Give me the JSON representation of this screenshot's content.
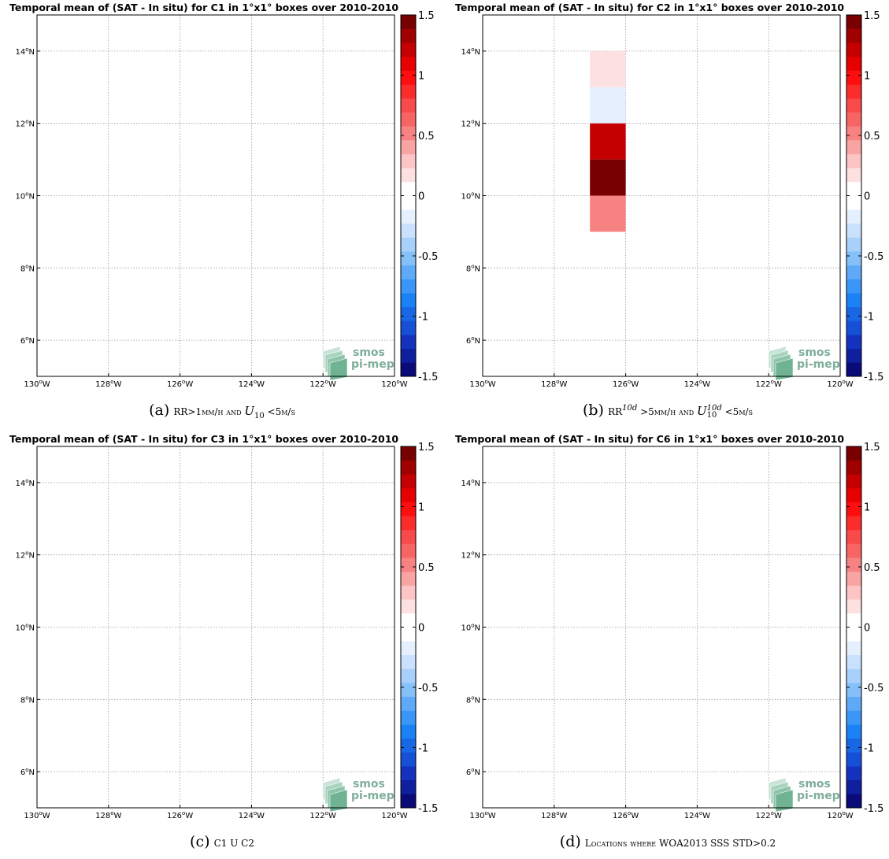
{
  "chart_data": [
    {
      "type": "heatmap",
      "panel_letter": "(a)",
      "title": "Temporal mean of (SAT - In situ) for C1 in 1°x1° boxes over 2010-2010",
      "xlim": [
        -130,
        -120
      ],
      "ylim": [
        5,
        15
      ],
      "x_ticks": [
        "130°W",
        "128°W",
        "126°W",
        "124°W",
        "122°W",
        "120°W"
      ],
      "y_ticks": [
        "6°N",
        "8°N",
        "10°N",
        "12°N",
        "14°N"
      ],
      "grid": true,
      "colorbar": {
        "range": [
          -1.5,
          1.5
        ],
        "ticks": [
          "1.5",
          "1",
          "0.5",
          "0",
          "-0.5",
          "-1",
          "-1.5"
        ]
      },
      "cells": [],
      "caption": "RR>1mm/h and U10 <5m/s"
    },
    {
      "type": "heatmap",
      "panel_letter": "(b)",
      "title": "Temporal mean of (SAT - In situ) for C2 in 1°x1° boxes over 2010-2010",
      "xlim": [
        -130,
        -120
      ],
      "ylim": [
        5,
        15
      ],
      "x_ticks": [
        "130°W",
        "128°W",
        "126°W",
        "124°W",
        "122°W",
        "120°W"
      ],
      "y_ticks": [
        "6°N",
        "8°N",
        "10°N",
        "12°N",
        "14°N"
      ],
      "grid": true,
      "colorbar": {
        "range": [
          -1.5,
          1.5
        ],
        "ticks": [
          "1.5",
          "1",
          "0.5",
          "0",
          "-0.5",
          "-1",
          "-1.5"
        ]
      },
      "cells": [
        {
          "lon": [
            -127,
            -126
          ],
          "lat": [
            13,
            14
          ],
          "value": 0.2
        },
        {
          "lon": [
            -127,
            -126
          ],
          "lat": [
            12,
            13
          ],
          "value": -0.2
        },
        {
          "lon": [
            -127,
            -126
          ],
          "lat": [
            11,
            12
          ],
          "value": 1.2
        },
        {
          "lon": [
            -127,
            -126
          ],
          "lat": [
            10,
            11
          ],
          "value": 1.5
        },
        {
          "lon": [
            -127,
            -126
          ],
          "lat": [
            9,
            10
          ],
          "value": 0.55
        }
      ],
      "caption": "RR10d >5mm/h and U10d10 <5m/s"
    },
    {
      "type": "heatmap",
      "panel_letter": "(c)",
      "title": "Temporal mean of (SAT - In situ) for C3 in 1°x1° boxes over 2010-2010",
      "xlim": [
        -130,
        -120
      ],
      "ylim": [
        5,
        15
      ],
      "x_ticks": [
        "130°W",
        "128°W",
        "126°W",
        "124°W",
        "122°W",
        "120°W"
      ],
      "y_ticks": [
        "6°N",
        "8°N",
        "10°N",
        "12°N",
        "14°N"
      ],
      "grid": true,
      "colorbar": {
        "range": [
          -1.5,
          1.5
        ],
        "ticks": [
          "1.5",
          "1",
          "0.5",
          "0",
          "-0.5",
          "-1",
          "-1.5"
        ]
      },
      "cells": [],
      "caption": "C1 U C2"
    },
    {
      "type": "heatmap",
      "panel_letter": "(d)",
      "title": "Temporal mean of (SAT - In situ) for C6 in 1°x1° boxes over 2010-2010",
      "xlim": [
        -130,
        -120
      ],
      "ylim": [
        5,
        15
      ],
      "x_ticks": [
        "130°W",
        "128°W",
        "126°W",
        "124°W",
        "122°W",
        "120°W"
      ],
      "y_ticks": [
        "6°N",
        "8°N",
        "10°N",
        "12°N",
        "14°N"
      ],
      "grid": true,
      "colorbar": {
        "range": [
          -1.5,
          1.5
        ],
        "ticks": [
          "1.5",
          "1",
          "0.5",
          "0",
          "-0.5",
          "-1",
          "-1.5"
        ]
      },
      "cells": [],
      "caption": "Locations where WOA2013 SSS STD>0.2"
    }
  ],
  "logo": {
    "line1": "smos",
    "line2": "pi-mep"
  },
  "captions": {
    "a_pre": "RR>1mm/h and ",
    "a_var": "U",
    "a_sub": "10",
    "a_post": " <5m/s",
    "b_pre": "RR",
    "b_sup1": "10d",
    "b_mid": " >5mm/h and ",
    "b_var": "U",
    "b_sup2": "10d",
    "b_sub": "10",
    "b_post": " <5m/s",
    "c_text": "C1 U C2",
    "d_text": "Locations where WOA2013 SSS STD>0.2"
  },
  "colors": {
    "colorbar_bins": [
      "#0a0a78",
      "#0f1f9e",
      "#1432be",
      "#1650d6",
      "#1868e6",
      "#1a82f5",
      "#3a97f7",
      "#5eaaf8",
      "#85c0f9",
      "#a8d0fb",
      "#c9e1fc",
      "#e5effd",
      "#ffffff",
      "#ffffff",
      "#fde0e0",
      "#fcc4c4",
      "#f9a3a3",
      "#f78282",
      "#f76464",
      "#f84a4a",
      "#fa2c2c",
      "#fe0e0e",
      "#e60000",
      "#c40000",
      "#a00000",
      "#780000"
    ]
  }
}
